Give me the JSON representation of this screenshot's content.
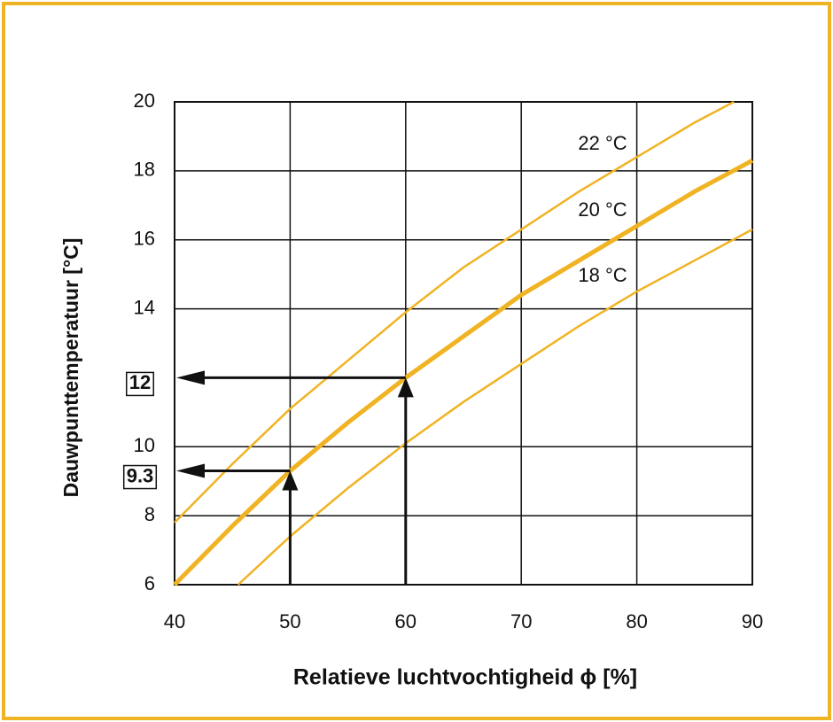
{
  "chart_data": {
    "type": "line",
    "xlabel": "Relatieve luchtvochtigheid ϕ [%]",
    "ylabel": "Dauwpunttemperatuur [°C]",
    "xlim": [
      40,
      90
    ],
    "ylim": [
      6,
      20
    ],
    "xticks": [
      40,
      50,
      60,
      70,
      80,
      90
    ],
    "yticks": [
      6,
      8,
      10,
      14,
      16,
      18,
      20
    ],
    "grid": true,
    "series": [
      {
        "name": "22 °C",
        "color": "#f0b323",
        "x": [
          40,
          45,
          50,
          55,
          60,
          65,
          70,
          75,
          80,
          85,
          88.4
        ],
        "values": [
          7.8,
          9.5,
          11.1,
          12.5,
          13.9,
          15.2,
          16.3,
          17.4,
          18.4,
          19.4,
          20.0
        ]
      },
      {
        "name": "20 °C",
        "color": "#f0b323",
        "x": [
          40,
          45,
          50,
          55,
          60,
          65,
          70,
          75,
          80,
          85,
          90
        ],
        "values": [
          6.0,
          7.7,
          9.3,
          10.7,
          12.0,
          13.2,
          14.4,
          15.4,
          16.4,
          17.4,
          18.3
        ]
      },
      {
        "name": "18 °C",
        "color": "#f0b323",
        "x": [
          45.5,
          50,
          55,
          60,
          65,
          70,
          75,
          80,
          85,
          90
        ],
        "values": [
          6.0,
          7.4,
          8.8,
          10.1,
          11.3,
          12.4,
          13.5,
          14.5,
          15.4,
          16.3
        ]
      }
    ],
    "annotations": [
      {
        "x": 60,
        "y": 12,
        "label": "12"
      },
      {
        "x": 50,
        "y": 9.3,
        "label": "9.3"
      }
    ]
  }
}
